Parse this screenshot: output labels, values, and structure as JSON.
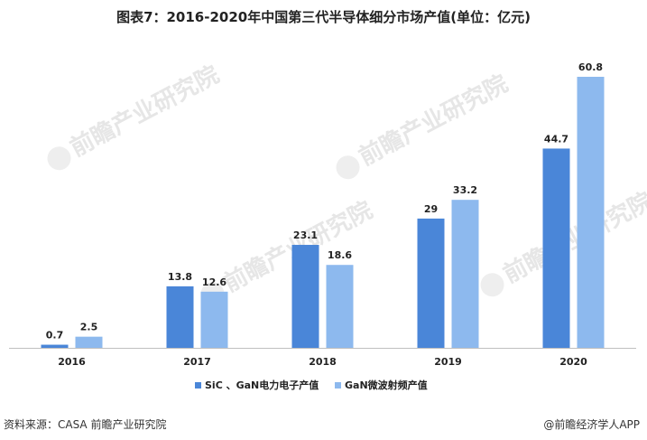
{
  "title": "图表7：2016-2020年中国第三代半导体细分市场产值(单位：亿元)",
  "watermark": "前瞻产业研究院",
  "source": "资料来源：CASA 前瞻产业研究院",
  "credit": "@前瞻经济学人APP",
  "chart_data": {
    "type": "bar",
    "categories": [
      "2016",
      "2017",
      "2018",
      "2019",
      "2020"
    ],
    "series": [
      {
        "name": "SiC 、GaN电力电子产值",
        "color": "#4a86d8",
        "values": [
          0.7,
          13.8,
          23.1,
          29,
          44.7
        ],
        "labels": [
          "0.7",
          "13.8",
          "23.1",
          "29",
          "44.7"
        ]
      },
      {
        "name": "GaN微波射频产值",
        "color": "#8db9ee",
        "values": [
          2.5,
          12.6,
          18.6,
          33.2,
          60.8
        ],
        "labels": [
          "2.5",
          "12.6",
          "18.6",
          "33.2",
          "60.8"
        ]
      }
    ],
    "ylim": [
      0,
      60.8
    ],
    "legend_position": "bottom",
    "grid": false
  }
}
